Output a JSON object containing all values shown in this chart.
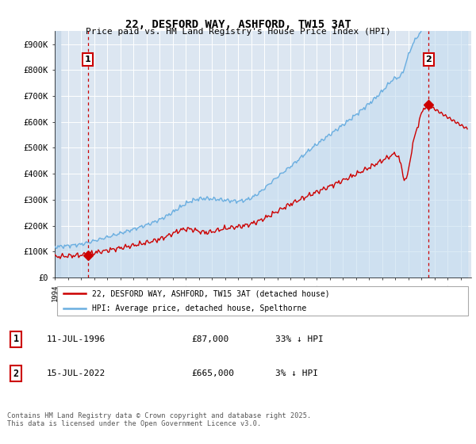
{
  "title": "22, DESFORD WAY, ASHFORD, TW15 3AT",
  "subtitle": "Price paid vs. HM Land Registry's House Price Index (HPI)",
  "ylim": [
    0,
    950000
  ],
  "yticks": [
    0,
    100000,
    200000,
    300000,
    400000,
    500000,
    600000,
    700000,
    800000,
    900000
  ],
  "ytick_labels": [
    "£0",
    "£100K",
    "£200K",
    "£300K",
    "£400K",
    "£500K",
    "£600K",
    "£700K",
    "£800K",
    "£900K"
  ],
  "hpi_color": "#6aaee0",
  "hpi_fill_color": "#c5ddf0",
  "price_color": "#cc0000",
  "annotation1_year": 1996.53,
  "annotation1_price": 87000,
  "annotation2_year": 2022.54,
  "annotation2_price": 665000,
  "legend_label1": "22, DESFORD WAY, ASHFORD, TW15 3AT (detached house)",
  "legend_label2": "HPI: Average price, detached house, Spelthorne",
  "table_row1": [
    "1",
    "11-JUL-1996",
    "£87,000",
    "33% ↓ HPI"
  ],
  "table_row2": [
    "2",
    "15-JUL-2022",
    "£665,000",
    "3% ↓ HPI"
  ],
  "footnote": "Contains HM Land Registry data © Crown copyright and database right 2025.\nThis data is licensed under the Open Government Licence v3.0.",
  "plot_bg_color": "#dce6f1",
  "grid_color": "#ffffff"
}
